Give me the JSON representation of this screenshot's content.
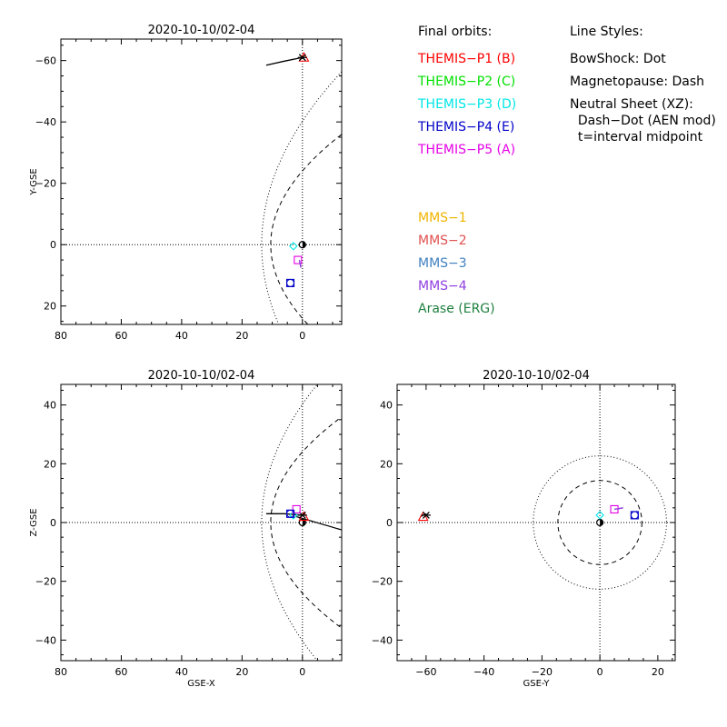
{
  "legend": {
    "final_orbits_title": "Final orbits:",
    "line_styles_title": "Line Styles:",
    "themis": [
      {
        "label": "THEMIS−P1 (B)",
        "color": "#ff0000"
      },
      {
        "label": "THEMIS−P2 (C)",
        "color": "#00e000"
      },
      {
        "label": "THEMIS−P3 (D)",
        "color": "#00e6e6"
      },
      {
        "label": "THEMIS−P4 (E)",
        "color": "#0000c8"
      },
      {
        "label": "THEMIS−P5 (A)",
        "color": "#e600e6"
      }
    ],
    "line_styles": [
      "BowShock: Dot",
      "Magnetopause: Dash",
      "Neutral Sheet (XZ):",
      "  Dash−Dot (AEN mod)",
      "  t=interval midpoint"
    ],
    "others": [
      {
        "label": "MMS−1",
        "color": "#f0b400"
      },
      {
        "label": "MMS−2",
        "color": "#e05050"
      },
      {
        "label": "MMS−3",
        "color": "#4080c0"
      },
      {
        "label": "MMS−4",
        "color": "#9040e0"
      },
      {
        "label": "Arase (ERG)",
        "color": "#208040"
      }
    ]
  },
  "chart_data": [
    {
      "type": "scatter",
      "title": "2020-10-10/02-04",
      "xlabel": "",
      "ylabel": "Y-GSE",
      "xlim": [
        80,
        -13
      ],
      "ylim": [
        26,
        -67
      ],
      "xticks": [
        80,
        60,
        40,
        20,
        0
      ],
      "yticks": [
        20,
        0,
        -20,
        -40,
        -60
      ],
      "ytick_labels": [
        "20",
        "0",
        "−20",
        "−40",
        "−60"
      ],
      "projection": "xy",
      "orbit_track": {
        "x": [
          12,
          6,
          0
        ],
        "y": [
          -58.5,
          -59.8,
          -61
        ]
      }
    },
    {
      "type": "scatter",
      "title": "2020-10-10/02-04",
      "xlabel": "GSE-X",
      "ylabel": "Z-GSE",
      "xlim": [
        80,
        -13
      ],
      "ylim": [
        -47,
        47
      ],
      "xticks": [
        80,
        60,
        40,
        20,
        0
      ],
      "yticks": [
        -40,
        -20,
        0,
        20,
        40
      ],
      "ytick_labels": [
        "−40",
        "−20",
        "0",
        "20",
        "40"
      ],
      "projection": "xz",
      "orbit_track": {
        "x": [
          12,
          6,
          0
        ],
        "y": [
          3,
          3,
          2.5
        ]
      }
    },
    {
      "type": "scatter",
      "title": "2020-10-10/02-04",
      "xlabel": "GSE-Y",
      "ylabel": "",
      "xlim": [
        -70,
        26
      ],
      "ylim": [
        -47,
        47
      ],
      "xticks": [
        -60,
        -40,
        -20,
        0,
        20
      ],
      "xtick_labels": [
        "−60",
        "−40",
        "−20",
        "0",
        "20"
      ],
      "yticks": [
        -40,
        -20,
        0,
        20,
        40
      ],
      "ytick_labels": [
        "−40",
        "−20",
        "0",
        "20",
        "40"
      ],
      "projection": "yz",
      "orbit_track": {
        "x": [
          -62,
          -61,
          -60
        ],
        "y": [
          2,
          2.5,
          3
        ]
      }
    }
  ]
}
